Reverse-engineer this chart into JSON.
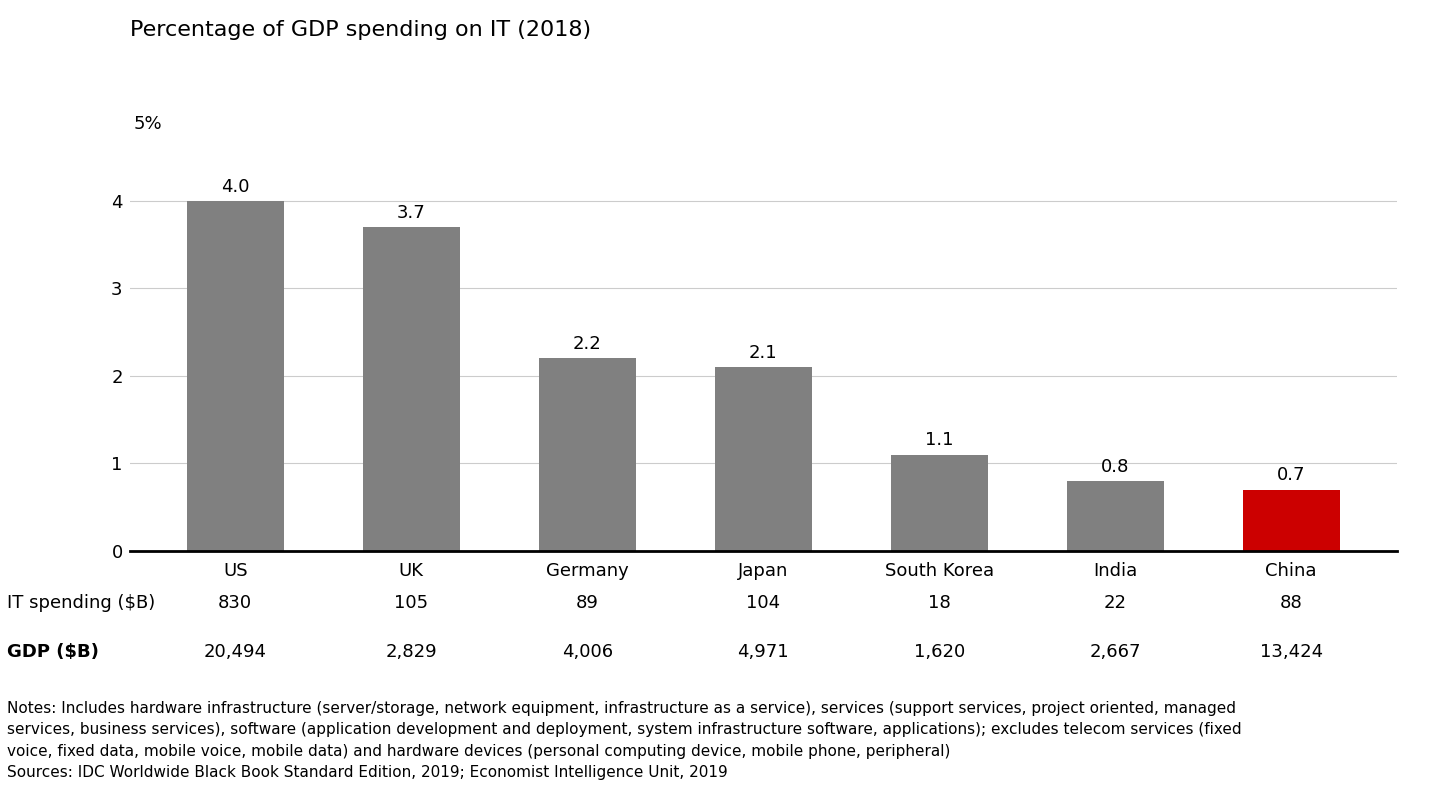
{
  "title": "Percentage of GDP spending on IT (2018)",
  "categories": [
    "US",
    "UK",
    "Germany",
    "Japan",
    "South Korea",
    "India",
    "China"
  ],
  "values": [
    4.0,
    3.7,
    2.2,
    2.1,
    1.1,
    0.8,
    0.7
  ],
  "bar_colors": [
    "#808080",
    "#808080",
    "#808080",
    "#808080",
    "#808080",
    "#808080",
    "#cc0000"
  ],
  "it_spending": [
    "830",
    "105",
    "89",
    "104",
    "18",
    "22",
    "88"
  ],
  "gdp": [
    "20,494",
    "2,829",
    "4,006",
    "4,971",
    "1,620",
    "2,667",
    "13,424"
  ],
  "ylim": [
    0,
    5
  ],
  "yticks": [
    0,
    1,
    2,
    3,
    4
  ],
  "ylabel_extra": "5%",
  "title_fontsize": 16,
  "tick_fontsize": 13,
  "bar_label_fontsize": 13,
  "table_fontsize": 13,
  "notes_fontsize": 11,
  "background_color": "#ffffff",
  "bar_width": 0.55,
  "row_label_it": "IT spending ($B)",
  "row_label_gdp": "GDP ($B)",
  "notes_text": "Notes: Includes hardware infrastructure (server/storage, network equipment, infrastructure as a service), services (support services, project oriented, managed\nservices, business services), software (application development and deployment, system infrastructure software, applications); excludes telecom services (fixed\nvoice, fixed data, mobile voice, mobile data) and hardware devices (personal computing device, mobile phone, peripheral)\nSources: IDC Worldwide Black Book Standard Edition, 2019; Economist Intelligence Unit, 2019"
}
